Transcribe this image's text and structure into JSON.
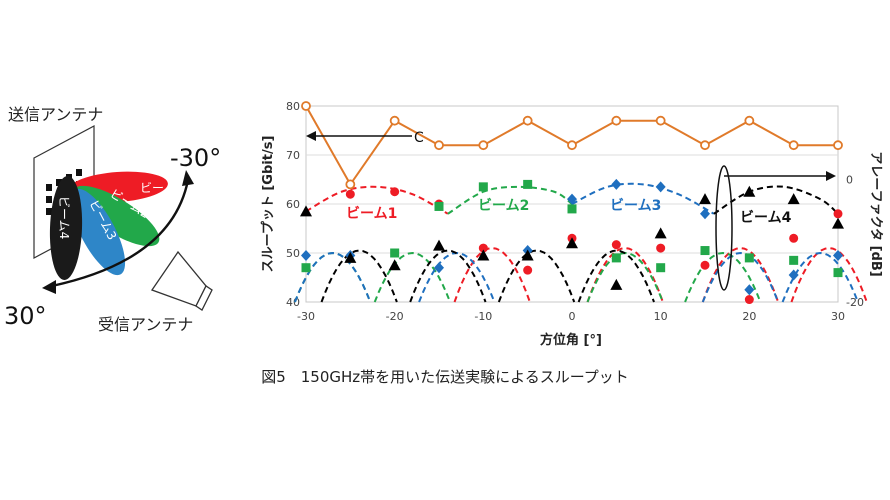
{
  "diagram": {
    "tx_label": "送信アンテナ",
    "rx_label": "受信アンテナ",
    "angle_neg": "-30°",
    "angle_pos": "30°",
    "beam_labels": [
      "ビーム1",
      "ビーム2",
      "ビーム3",
      "ビーム4"
    ],
    "beam_colors": [
      "#ee1c25",
      "#22a84a",
      "#2e86c8",
      "#1a1a1a"
    ]
  },
  "caption": "図5　150GHz帯を用いた伝送実験によるスループット",
  "chart_data": {
    "type": "scatter",
    "xlabel": "方位角 [°]",
    "ylabel": "スループット [Gbit/s]",
    "y2label": "アレーファクタ [dB]",
    "xlim": [
      -30,
      30
    ],
    "ylim": [
      40,
      80
    ],
    "xticks": [
      "-30",
      "-20",
      "-10",
      "0",
      "10",
      "20",
      "30"
    ],
    "yticks": [
      "40",
      "50",
      "60",
      "70",
      "80"
    ],
    "y2ticks": [
      "0",
      "-20"
    ],
    "y2_tick_values": [
      65,
      40
    ],
    "annotations": {
      "arrow_label": "C"
    },
    "series": [
      {
        "name": "ビーム1",
        "color": "#ee1c25",
        "marker": "circle",
        "x": [
          -25,
          -20,
          -15,
          -10,
          -5,
          0,
          5,
          10,
          15,
          20,
          25,
          30
        ],
        "y": [
          62,
          62.5,
          60,
          51,
          46.5,
          53,
          51.7,
          51,
          47.5,
          40.5,
          53,
          58
        ]
      },
      {
        "name": "ビーム2",
        "color": "#22a84a",
        "marker": "square",
        "x": [
          -30,
          -20,
          -15,
          -10,
          -5,
          0,
          5,
          10,
          15,
          20,
          25,
          30
        ],
        "y": [
          47,
          50,
          59.5,
          63.5,
          64,
          59,
          49,
          47,
          50.5,
          49,
          48.5,
          46
        ]
      },
      {
        "name": "ビーム3",
        "color": "#1f6fbf",
        "marker": "diamond",
        "x": [
          -30,
          -25,
          -15,
          -5,
          0,
          5,
          10,
          15,
          20,
          25,
          30
        ],
        "y": [
          49.5,
          49.5,
          47,
          50.5,
          61,
          64,
          63.5,
          58,
          42.5,
          45.5,
          49.5
        ]
      },
      {
        "name": "ビーム4",
        "color": "#000000",
        "marker": "triangle",
        "x": [
          -30,
          -25,
          -20,
          -15,
          -10,
          -5,
          0,
          5,
          10,
          15,
          20,
          25,
          30
        ],
        "y": [
          58.5,
          49,
          47.5,
          51.5,
          49.5,
          49.5,
          52,
          43.5,
          54,
          61,
          62.5,
          61,
          56
        ]
      },
      {
        "name": "アレーファクタ",
        "color": "#e07a2a",
        "marker": "open-circle",
        "x": [
          -30,
          -25,
          -20,
          -15,
          -10,
          -5,
          0,
          5,
          10,
          15,
          20,
          25,
          30
        ],
        "y": [
          80,
          64,
          77,
          72,
          72,
          77,
          72,
          77,
          77,
          72,
          77,
          72,
          72
        ]
      }
    ],
    "curves": [
      {
        "name": "ビーム1",
        "color": "#ee1c25",
        "x": [
          -30,
          -26,
          -22,
          -18,
          -14
        ],
        "y": [
          58.5,
          62.5,
          63.5,
          62,
          58
        ]
      },
      {
        "name": "ビーム2",
        "color": "#22a84a",
        "x": [
          -14,
          -10,
          -6,
          -2,
          0
        ],
        "y": [
          58,
          62.5,
          63.5,
          62.5,
          60
        ]
      },
      {
        "name": "ビーム3",
        "color": "#1f6fbf",
        "x": [
          0,
          4,
          8,
          12,
          16
        ],
        "y": [
          60,
          63.5,
          64,
          62,
          58
        ]
      },
      {
        "name": "ビーム4",
        "color": "#000000",
        "x": [
          16,
          20,
          24,
          28,
          30
        ],
        "y": [
          58,
          62.5,
          63.5,
          61,
          58
        ]
      }
    ]
  }
}
